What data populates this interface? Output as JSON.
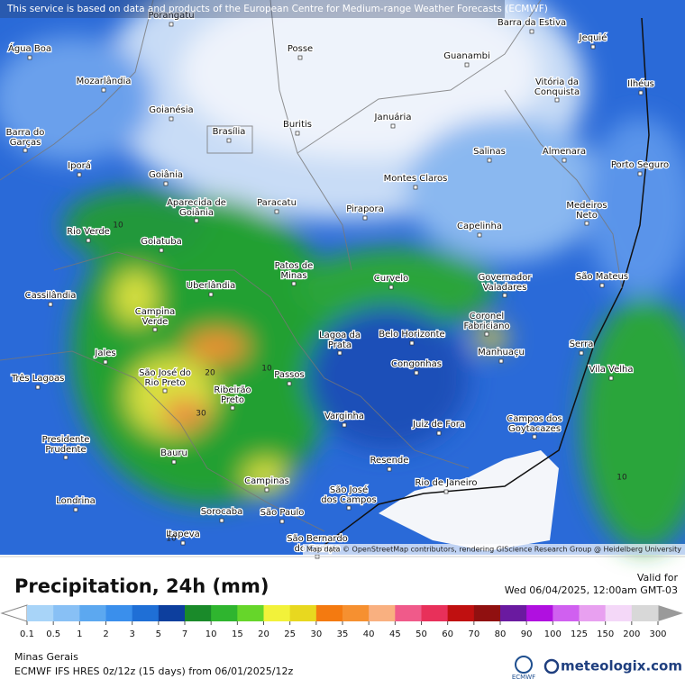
{
  "notice": "This service is based on data and products of the European Centre for Medium-range Weather Forecasts (ECMWF)",
  "attribution": "Map data © OpenStreetMap contributors, rendering GIScience Research Group @ Heidelberg University",
  "cities": [
    "Porangatu",
    "Barra da Estiva",
    "Jequié",
    "Água Boa",
    "Posse",
    "Guanambi",
    "Mozarlândia",
    "Vitória da Conquista",
    "Ilhéus",
    "Goianésia",
    "Januária",
    "Barra do Garças",
    "Brasília",
    "Buritis",
    "Salinas",
    "Almenara",
    "Iporá",
    "Porto Seguro",
    "Goiânia",
    "Montes Claros",
    "Aparecida de Goiânia",
    "Paracatu",
    "Pirapora",
    "Medeiros Neto",
    "Capelinha",
    "Rio Verde",
    "Goiatuba",
    "Patos de Minas",
    "Governador Valadares",
    "São Mateus",
    "Curvelo",
    "Uberlândia",
    "Cassilândia",
    "Campina Verde",
    "Coronel Fabriciano",
    "Lagoa da Prata",
    "Belo Horizonte",
    "Serra",
    "Jales",
    "Manhuaçu",
    "São José do Rio Preto",
    "Congonhas",
    "Vila Velha",
    "Passos",
    "Três Lagoas",
    "Ribeirão Preto",
    "Campos dos Goytacazes",
    "Varginha",
    "Juiz de Fora",
    "Presidente Prudente",
    "Bauru",
    "Resende",
    "Campinas",
    "Rio de Janeiro",
    "São José dos Campos",
    "Londrina",
    "Sorocaba",
    "São Paulo",
    "Itapeva",
    "São Bernardo do Campo"
  ],
  "contour_labels": [
    10,
    20,
    30,
    10,
    10,
    10
  ],
  "legend": {
    "title": "Precipitation, 24h (mm)",
    "ticks": [
      0.1,
      0.5,
      1,
      2,
      3,
      5,
      7,
      10,
      15,
      20,
      25,
      30,
      35,
      40,
      45,
      50,
      60,
      70,
      80,
      90,
      100,
      125,
      150,
      200,
      300
    ],
    "colors": [
      "#a8d4f8",
      "#88c0f5",
      "#5ca8f0",
      "#3a8fec",
      "#1f6fd6",
      "#0d3f9e",
      "#1a8a2a",
      "#2fb52f",
      "#66d62a",
      "#f2f23a",
      "#e8d81f",
      "#f47a10",
      "#f69030",
      "#f9b080",
      "#f05a8a",
      "#e8305a",
      "#c01010",
      "#901010",
      "#6a1aa0",
      "#b010e0",
      "#d060f0",
      "#e8a0f0",
      "#f4d8f8",
      "#d8d8d8"
    ]
  },
  "valid": {
    "label": "Valid for",
    "time": "Wed 06/04/2025, 12:00am GMT-03"
  },
  "footer": {
    "region": "Minas Gerais",
    "model": "ECMWF IFS HRES 0z/12z (15 days) from 06/01/2025/12z",
    "ecmwf_logo": "ECMWF",
    "brand": "meteologix.com"
  }
}
